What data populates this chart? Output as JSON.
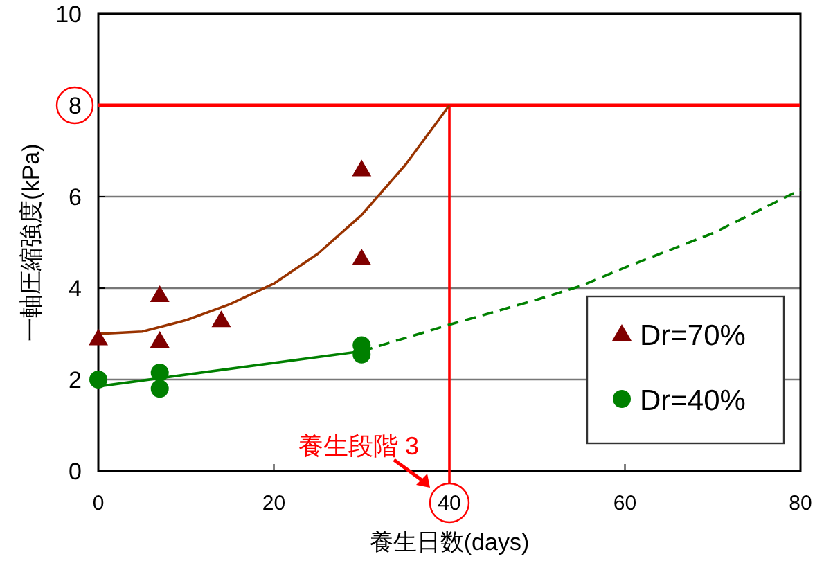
{
  "chart_data": {
    "type": "scatter",
    "xlabel": "養生日数(days)",
    "ylabel": "一軸圧縮強度(kPa)",
    "xlim": [
      0,
      80
    ],
    "xticks": [
      0,
      20,
      40,
      60,
      80
    ],
    "ylim": [
      0,
      10
    ],
    "yticks": [
      0,
      2,
      4,
      6,
      8,
      10
    ],
    "grid": "y",
    "legend": "bottom right",
    "series": [
      {
        "name": "Dr=70%",
        "marker": "triangle",
        "color": "#800000",
        "x": [
          0,
          7,
          7,
          14,
          30,
          30
        ],
        "values": [
          2.9,
          2.85,
          3.85,
          3.3,
          4.65,
          6.6
        ]
      },
      {
        "name": "Dr=40%",
        "marker": "circle",
        "color": "#008000",
        "x": [
          0,
          7,
          7,
          30,
          30
        ],
        "values": [
          2.0,
          1.8,
          2.15,
          2.55,
          2.75
        ]
      },
      {
        "type": "line",
        "color": "#993300",
        "line_style": "solid",
        "x": [
          0,
          5,
          10,
          15,
          20,
          25,
          30,
          35,
          40
        ],
        "values": [
          3.0,
          3.05,
          3.3,
          3.65,
          4.1,
          4.75,
          5.6,
          6.7,
          8.0
        ]
      },
      {
        "type": "line",
        "color": "#008000",
        "line_style": "solid",
        "x": [
          0,
          30
        ],
        "values": [
          1.85,
          2.62
        ]
      },
      {
        "type": "line",
        "color": "#008000",
        "line_style": "dashed",
        "x": [
          30,
          40,
          50,
          55,
          60,
          70,
          80
        ],
        "values": [
          2.62,
          3.2,
          3.75,
          4.05,
          4.45,
          5.2,
          6.15
        ]
      }
    ],
    "ref_lines": [
      {
        "axis": "y",
        "value": 8,
        "color": "#ff0000"
      },
      {
        "axis": "x",
        "value": 40,
        "color": "#ff0000"
      }
    ],
    "annotations": [
      {
        "text": "養生段階 3",
        "x": 40,
        "y": 0
      }
    ]
  }
}
